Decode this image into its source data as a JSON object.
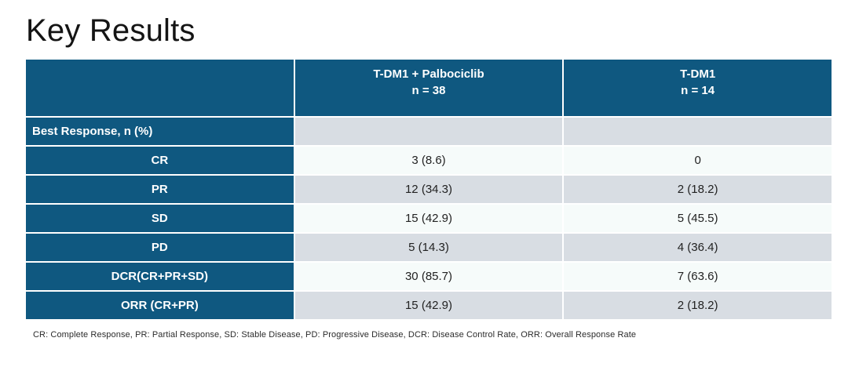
{
  "slide": {
    "title": "Key Results",
    "footnote": "CR: Complete Response, PR: Partial Response, SD: Stable Disease, PD: Progressive Disease, DCR: Disease Control Rate, ORR: Overall Response Rate"
  },
  "table": {
    "columns": [
      {
        "label": "",
        "sublabel": ""
      },
      {
        "label": "T-DM1 + Palbociclib",
        "sublabel": "n = 38"
      },
      {
        "label": "T-DM1",
        "sublabel": "n = 14"
      }
    ],
    "rows": [
      {
        "label": "Best Response, n (%)",
        "values": [
          "",
          ""
        ]
      },
      {
        "label": "CR",
        "values": [
          "3 (8.6)",
          "0"
        ]
      },
      {
        "label": "PR",
        "values": [
          "12 (34.3)",
          "2 (18.2)"
        ]
      },
      {
        "label": "SD",
        "values": [
          "15 (42.9)",
          "5 (45.5)"
        ]
      },
      {
        "label": "PD",
        "values": [
          "5 (14.3)",
          "4 (36.4)"
        ]
      },
      {
        "label": "DCR(CR+PR+SD)",
        "values": [
          "30 (85.7)",
          "7 (63.6)"
        ]
      },
      {
        "label": "ORR (CR+PR)",
        "values": [
          "15 (42.9)",
          "2 (18.2)"
        ]
      }
    ]
  },
  "colors": {
    "header_blue": "#0F5880",
    "row_light": "#F6FBFA",
    "row_gray": "#D8DDE3",
    "separator": "#FFFFFF",
    "title_text": "#141414",
    "cell_text": "#222222"
  }
}
